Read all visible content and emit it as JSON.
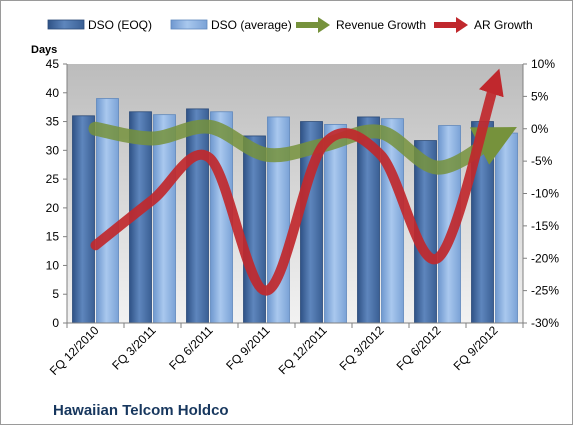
{
  "chart_data": {
    "type": "bar",
    "categories": [
      "FQ 12/2010",
      "FQ 3/2011",
      "FQ 6/2011",
      "FQ 9/2011",
      "FQ 12/2011",
      "FQ 3/2012",
      "FQ 6/2012",
      "FQ 9/2012"
    ],
    "series": [
      {
        "name": "DSO (EOQ)",
        "kind": "bar",
        "axis": "left",
        "color": "#4a6ea0",
        "values": [
          36,
          36.7,
          37.2,
          32.5,
          35,
          35.8,
          31.7,
          35
        ]
      },
      {
        "name": "DSO (average)",
        "kind": "bar",
        "axis": "left",
        "color": "#8db3e2",
        "values": [
          39,
          36.2,
          36.7,
          35.8,
          34.5,
          35.5,
          34.3,
          33
        ]
      },
      {
        "name": "Revenue Growth",
        "kind": "line",
        "axis": "right",
        "color": "#76923c",
        "values": [
          0,
          -1.5,
          0.3,
          -4,
          -2.5,
          -0.5,
          -6,
          -1.5
        ]
      },
      {
        "name": "AR Growth",
        "kind": "line",
        "axis": "right",
        "color": "#c0282d",
        "values": [
          -18,
          -11,
          -4.5,
          -25,
          -2.5,
          -4,
          -20,
          7
        ]
      }
    ],
    "ylabel": "Days",
    "ylim": [
      0,
      45
    ],
    "yticks": [
      "0",
      "5",
      "10",
      "15",
      "20",
      "25",
      "30",
      "35",
      "40",
      "45"
    ],
    "y2lim": [
      -30,
      10
    ],
    "y2ticks": [
      "-30%",
      "-25%",
      "-20%",
      "-15%",
      "-10%",
      "-5%",
      "0%",
      "5%",
      "10%"
    ],
    "legend": "top",
    "grid": false,
    "footer": "Hawaiian Telcom Holdco"
  }
}
